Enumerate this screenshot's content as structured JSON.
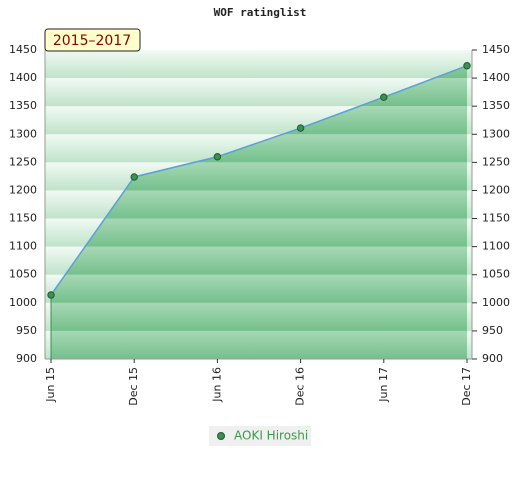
{
  "chart_data": {
    "type": "line",
    "title": "WOF ratinglist",
    "subtitle": "2015–2017",
    "categories": [
      "Jun 15",
      "Dec 15",
      "Jun 16",
      "Dec 16",
      "Jun 17",
      "Dec 17"
    ],
    "series": [
      {
        "name": "AOKI Hiroshi",
        "color": "#5a9fd8",
        "values": [
          1014,
          1224,
          1260,
          1311,
          1366,
          1422
        ]
      }
    ],
    "ylim": [
      900,
      1450
    ],
    "yticks": [
      900,
      950,
      1000,
      1050,
      1100,
      1150,
      1200,
      1250,
      1300,
      1350,
      1400,
      1450
    ],
    "grid": false,
    "legend": "bottom"
  }
}
